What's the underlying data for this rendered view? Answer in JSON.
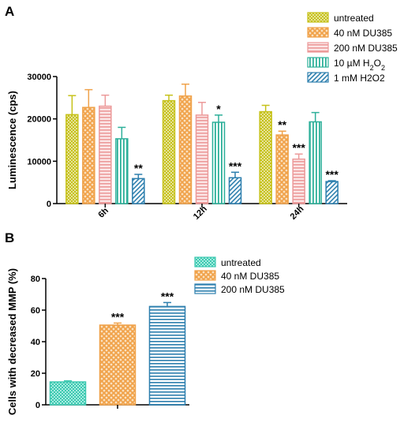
{
  "chart_data": [
    {
      "panel": "A",
      "type": "bar",
      "ylabel": "Luminescence (cps)",
      "ylim": [
        0,
        30000
      ],
      "yticks": [
        "0",
        "10000",
        "20000",
        "30000"
      ],
      "categories": [
        "6h",
        "12h",
        "24h"
      ],
      "legend_position": "top-right",
      "series": [
        {
          "name": "untreated",
          "color": "#c6c21a",
          "pattern": "checker",
          "values": [
            21000,
            24300,
            21700
          ],
          "errors": [
            4500,
            1300,
            1500
          ],
          "significance": [
            "",
            "",
            ""
          ]
        },
        {
          "name": "40 nM DU385",
          "color": "#f0a24a",
          "pattern": "crosshatch",
          "values": [
            22700,
            25400,
            16200
          ],
          "errors": [
            4200,
            2800,
            900
          ],
          "significance": [
            "",
            "",
            "**"
          ]
        },
        {
          "name": "200 nM DU385",
          "color": "#ec9a9a",
          "pattern": "hstripes",
          "values": [
            23000,
            20900,
            10500
          ],
          "errors": [
            2600,
            3000,
            1200
          ],
          "significance": [
            "",
            "",
            "***"
          ]
        },
        {
          "name": "10 µM H",
          "name_sub": "2",
          "name_mid": "O",
          "name_sub2": "2",
          "color": "#2eb09a",
          "pattern": "vstripes",
          "values": [
            15300,
            19200,
            19300
          ],
          "errors": [
            2700,
            1700,
            2200
          ],
          "significance": [
            "",
            "*",
            ""
          ]
        },
        {
          "name": "1 mM H2O2",
          "color": "#2d7fae",
          "pattern": "diag",
          "values": [
            5900,
            6100,
            5200
          ],
          "errors": [
            1000,
            1300,
            200
          ],
          "significance": [
            "**",
            "***",
            "***"
          ]
        }
      ]
    },
    {
      "panel": "B",
      "type": "bar",
      "ylabel": "Cells with decreased MMP (%)",
      "ylim": [
        0,
        80
      ],
      "yticks": [
        "0",
        "20",
        "40",
        "60",
        "80"
      ],
      "categories": [
        ""
      ],
      "legend_position": "top",
      "series": [
        {
          "name": "untreated",
          "color": "#3cc8b0",
          "pattern": "checker",
          "values": [
            14.5
          ],
          "errors": [
            0.7
          ],
          "significance": [
            ""
          ]
        },
        {
          "name": "40 nM DU385",
          "color": "#f0a24a",
          "pattern": "crosshatch",
          "values": [
            50.5
          ],
          "errors": [
            1.3
          ],
          "significance": [
            "***"
          ]
        },
        {
          "name": "200 nM DU385",
          "color": "#2d7fae",
          "pattern": "hstripes",
          "values": [
            62.3
          ],
          "errors": [
            2.5
          ],
          "significance": [
            "***"
          ]
        }
      ]
    }
  ]
}
